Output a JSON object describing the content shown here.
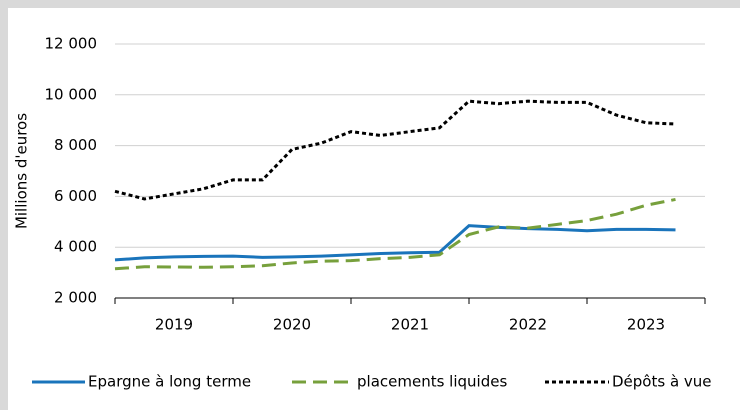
{
  "chart_data": {
    "type": "line",
    "ylabel": "Millions d'euros",
    "xgroups": [
      "2019",
      "2020",
      "2021",
      "2022",
      "2023"
    ],
    "ylim": [
      2000,
      12000
    ],
    "yticks": [
      {
        "value": 2000,
        "label": "2 000"
      },
      {
        "value": 4000,
        "label": "4 000"
      },
      {
        "value": 6000,
        "label": "6 000"
      },
      {
        "value": 8000,
        "label": "8 000"
      },
      {
        "value": 10000,
        "label": "10 000"
      },
      {
        "value": 12000,
        "label": "12 000"
      }
    ],
    "grid": true,
    "legend": "bottom",
    "series": [
      {
        "name": "Epargne à long terme",
        "color": "#1a74bb",
        "dash": "solid",
        "values": [
          3500,
          3580,
          3620,
          3640,
          3650,
          3600,
          3620,
          3650,
          3700,
          3750,
          3780,
          3800,
          4850,
          4780,
          4730,
          4700,
          4650,
          4700,
          4700,
          4680
        ]
      },
      {
        "name": "placements liquides",
        "color": "#77a03c",
        "dash": "dashed",
        "values": [
          3150,
          3230,
          3220,
          3210,
          3230,
          3270,
          3380,
          3450,
          3470,
          3550,
          3600,
          3700,
          4500,
          4800,
          4750,
          4900,
          5050,
          5300,
          5650,
          5880
        ]
      },
      {
        "name": "Dépôts à vue",
        "color": "#000000",
        "dash": "dotted",
        "values": [
          6200,
          5900,
          6100,
          6300,
          6650,
          6650,
          7850,
          8100,
          8550,
          8400,
          8550,
          8700,
          9750,
          9650,
          9750,
          9700,
          9700,
          9200,
          8900,
          8850
        ]
      }
    ]
  }
}
